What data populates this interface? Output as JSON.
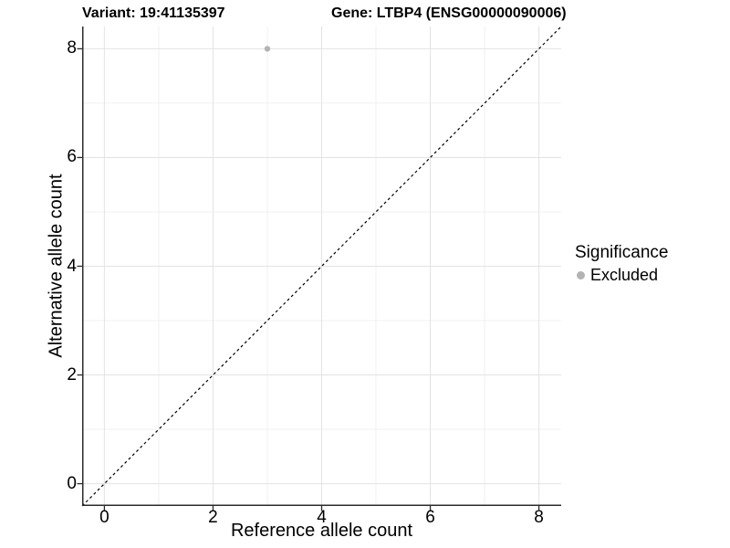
{
  "header": {
    "variant": "Variant: 19:41135397",
    "gene": "Gene: LTBP4 (ENSG00000090006)"
  },
  "chart_data": {
    "type": "scatter",
    "points": [
      {
        "x": 3,
        "y": 8,
        "significance": "Excluded"
      }
    ],
    "xlabel": "Reference allele count",
    "ylabel": "Alternative allele count",
    "xticks": [
      0,
      2,
      4,
      6,
      8
    ],
    "yticks": [
      0,
      2,
      4,
      6,
      8
    ],
    "xlim": [
      -0.41,
      8.41
    ],
    "ylim": [
      -0.41,
      8.41
    ],
    "grid": {
      "major": [
        0,
        2,
        4,
        6,
        8
      ],
      "minor": [
        1,
        3,
        5,
        7
      ]
    },
    "reference_line": {
      "type": "identity-diagonal",
      "slope": 1,
      "intercept": 0,
      "style": "dashed",
      "color": "#000000"
    },
    "legend": {
      "title": "Significance",
      "position": "right",
      "items": [
        {
          "label": "Excluded",
          "color": "#b3b3b3"
        }
      ]
    },
    "colors": {
      "point_excluded": "#b3b3b3",
      "grid_major": "#e3e3e3",
      "grid_minor": "#f0f0f0",
      "axis": "#2b2b2b",
      "text": "#000000",
      "background": "#ffffff"
    }
  }
}
